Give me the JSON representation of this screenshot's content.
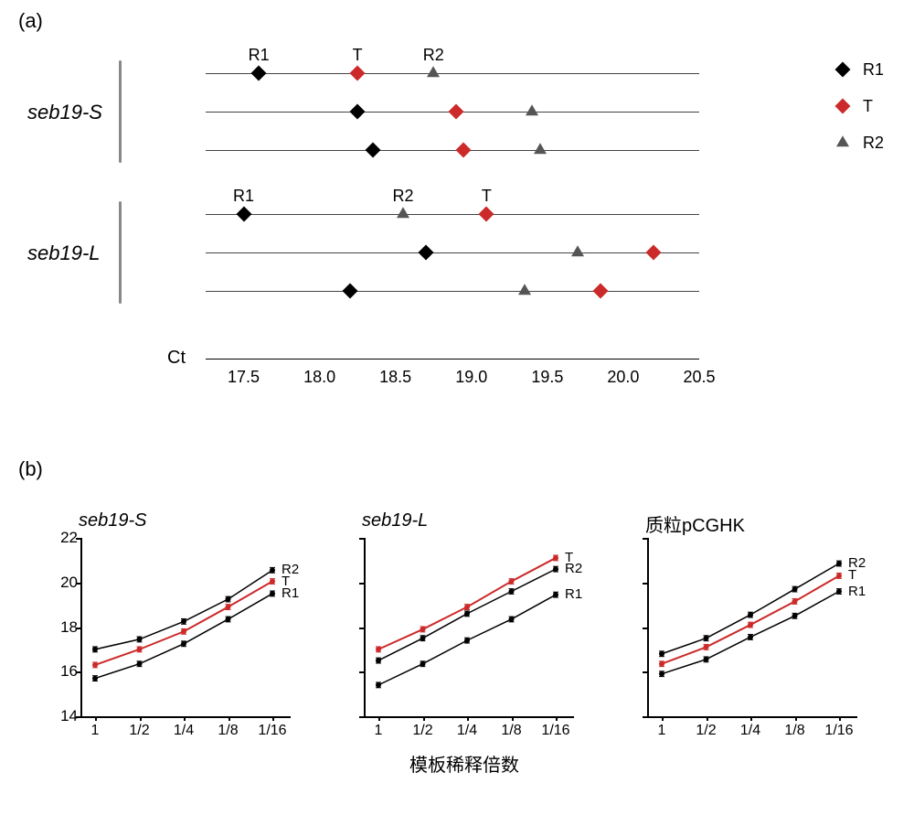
{
  "panel_a": {
    "label": "(a)",
    "ct_label": "Ct",
    "axis": {
      "min": 17.25,
      "max": 20.5,
      "ticks": [
        "17.5",
        "18.0",
        "18.5",
        "19.0",
        "19.5",
        "20.0",
        "20.5"
      ],
      "tick_values": [
        17.5,
        18.0,
        18.5,
        19.0,
        19.5,
        20.0,
        20.5
      ]
    },
    "groups": [
      {
        "name": "seb19-S",
        "show_point_labels": true,
        "rows": [
          {
            "R1": 17.6,
            "T": 18.25,
            "R2": 18.75
          },
          {
            "R1": 18.25,
            "T": 18.9,
            "R2": 19.4
          },
          {
            "R1": 18.35,
            "T": 18.95,
            "R2": 19.45
          }
        ]
      },
      {
        "name": "seb19-L",
        "show_point_labels": true,
        "label_order": [
          "R1",
          "R2",
          "T"
        ],
        "rows": [
          {
            "R1": 17.5,
            "R2": 18.55,
            "T": 19.1
          },
          {
            "R1": 18.7,
            "R2": 19.7,
            "T": 20.2
          },
          {
            "R1": 18.2,
            "R2": 19.35,
            "T": 19.85
          }
        ]
      }
    ],
    "legend": [
      {
        "label": "R1",
        "shape": "diamond",
        "color": "#000000"
      },
      {
        "label": "T",
        "shape": "diamond",
        "color": "#cc2a2a"
      },
      {
        "label": "R2",
        "shape": "triangle",
        "color": "#555555"
      }
    ],
    "marker_colors": {
      "R1": "#000000",
      "T": "#cc2a2a",
      "R2": "#555555"
    },
    "marker_shapes": {
      "R1": "diamond",
      "T": "diamond",
      "R2": "triangle"
    },
    "row_line_color": "#444444"
  },
  "panel_b": {
    "label": "(b)",
    "x_categories": [
      "1",
      "1/2",
      "1/4",
      "1/8",
      "1/16"
    ],
    "y_axis": {
      "min": 14,
      "max": 22,
      "ticks": [
        14,
        16,
        18,
        20,
        22
      ]
    },
    "global_xlabel": "模板稀释倍数",
    "series_colors": {
      "R1": "#000000",
      "T": "#cc2a2a",
      "R2": "#000000"
    },
    "point_marker_size": 3,
    "errorbar_half": 0.12,
    "subplots": [
      {
        "title": "seb19-S",
        "italic": true,
        "label_order_end": [
          "R2",
          "T",
          "R1"
        ],
        "series": {
          "R1": [
            15.7,
            16.35,
            17.25,
            18.35,
            19.5
          ],
          "T": [
            16.3,
            17.0,
            17.8,
            18.9,
            20.05
          ],
          "R2": [
            17.0,
            17.45,
            18.25,
            19.25,
            20.55
          ]
        }
      },
      {
        "title": "seb19-L",
        "italic": true,
        "label_order_end": [
          "T",
          "R2",
          "R1"
        ],
        "series": {
          "R1": [
            15.4,
            16.35,
            17.4,
            18.35,
            19.45
          ],
          "T": [
            17.0,
            17.9,
            18.9,
            20.05,
            21.1
          ],
          "R2": [
            16.5,
            17.5,
            18.6,
            19.6,
            20.6
          ]
        }
      },
      {
        "title": "质粒pCGHK",
        "italic": false,
        "label_order_end": [
          "R2",
          "T",
          "R1"
        ],
        "series": {
          "R1": [
            15.9,
            16.55,
            17.55,
            18.5,
            19.6
          ],
          "T": [
            16.35,
            17.1,
            18.1,
            19.15,
            20.3
          ],
          "R2": [
            16.8,
            17.5,
            18.55,
            19.7,
            20.85
          ]
        }
      }
    ]
  }
}
